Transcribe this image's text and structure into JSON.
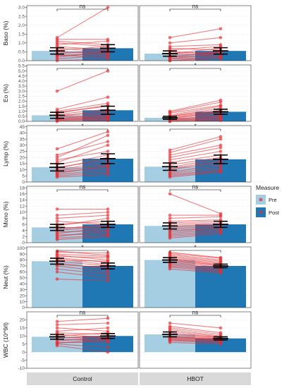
{
  "chart_data": {
    "type": "bar",
    "facet_columns": [
      "Control",
      "HBOT"
    ],
    "legend": {
      "title": "Measure",
      "placement": "right",
      "entries": [
        {
          "label": "Pre",
          "color": "#a6cee3"
        },
        {
          "label": "Post",
          "color": "#1f78b4"
        }
      ]
    },
    "colors": {
      "pre": "#a6cee3",
      "post": "#1f78b4",
      "lines": "#e8292f"
    },
    "panels": [
      {
        "ylabel": "Baso (%)",
        "ylim": [
          0,
          3.1
        ],
        "yticks": [
          0.0,
          0.5,
          1.0,
          1.5,
          2.0,
          2.5,
          3.0
        ],
        "ytick_labels": [
          "0.0",
          "0.5",
          "1.0",
          "1.5",
          "2.0",
          "2.5",
          "3.0"
        ],
        "groups": [
          {
            "facet": "Control",
            "pre_mean": 0.55,
            "post_mean": 0.7,
            "pre_err": 0.18,
            "post_err": 0.2,
            "sig": "ns",
            "pre": [
              1.3,
              1.2,
              1.1,
              1.0,
              0.9,
              0.8,
              0.7,
              0.6,
              0.5,
              0.4,
              0.3,
              0.3,
              0.2,
              0.1,
              0.0
            ],
            "post": [
              3.0,
              1.2,
              0.9,
              0.8,
              1.1,
              0.6,
              0.5,
              0.8,
              0.4,
              0.6,
              0.2,
              0.4,
              0.5,
              0.3,
              0.1
            ]
          },
          {
            "facet": "HBOT",
            "pre_mean": 0.4,
            "post_mean": 0.55,
            "pre_err": 0.15,
            "post_err": 0.18,
            "sig": "ns",
            "pre": [
              1.3,
              1.0,
              0.8,
              0.7,
              0.6,
              0.5,
              0.4,
              0.4,
              0.3,
              0.2,
              0.2,
              0.1,
              0.1,
              0.0,
              0.0
            ],
            "post": [
              1.8,
              1.3,
              0.9,
              0.6,
              0.8,
              0.4,
              0.7,
              0.5,
              0.4,
              0.5,
              0.3,
              0.2,
              0.4,
              0.1,
              0.2
            ]
          }
        ]
      },
      {
        "ylabel": "Eo (%)",
        "ylim": [
          0,
          5.6
        ],
        "yticks": [
          0.0,
          0.5,
          1.0,
          1.5,
          2.0,
          2.5,
          3.0,
          3.5,
          4.0,
          4.5,
          5.0,
          5.5
        ],
        "ytick_labels": [
          "0.0",
          "0.5",
          "1.0",
          "1.5",
          "2.0",
          "2.5",
          "3.0",
          "3.5",
          "4.0",
          "4.5",
          "5.0",
          "5.5"
        ],
        "groups": [
          {
            "facet": "Control",
            "pre_mean": 0.6,
            "post_mean": 1.1,
            "pre_err": 0.3,
            "post_err": 0.4,
            "sig": "*",
            "pre": [
              3.0,
              1.2,
              1.0,
              0.9,
              0.8,
              0.7,
              0.6,
              0.5,
              0.4,
              0.3,
              0.2,
              0.2,
              0.1,
              0.1,
              0.0
            ],
            "post": [
              5.0,
              2.4,
              1.8,
              1.5,
              1.6,
              1.2,
              0.9,
              1.0,
              0.7,
              0.6,
              0.5,
              0.4,
              0.3,
              0.2,
              0.1
            ]
          },
          {
            "facet": "HBOT",
            "pre_mean": 0.35,
            "post_mean": 0.95,
            "pre_err": 0.15,
            "post_err": 0.25,
            "sig": "*",
            "pre": [
              1.0,
              0.9,
              0.8,
              0.6,
              0.5,
              0.5,
              0.4,
              0.3,
              0.3,
              0.2,
              0.2,
              0.1,
              0.1,
              0.0,
              0.0
            ],
            "post": [
              2.1,
              1.9,
              1.6,
              1.5,
              1.3,
              1.1,
              1.0,
              0.9,
              0.8,
              0.6,
              0.5,
              0.4,
              0.3,
              0.2,
              0.1
            ]
          }
        ]
      },
      {
        "ylabel": "Lymp (%)",
        "ylim": [
          0,
          46
        ],
        "yticks": [
          0,
          5,
          10,
          15,
          20,
          25,
          30,
          35,
          40,
          45
        ],
        "ytick_labels": [
          "0",
          "5",
          "10",
          "15",
          "20",
          "25",
          "30",
          "35",
          "40",
          "45"
        ],
        "groups": [
          {
            "facet": "Control",
            "pre_mean": 12,
            "post_mean": 19,
            "pre_err": 3,
            "post_err": 4,
            "sig": "*",
            "pre": [
              27,
              22,
              20,
              18,
              16,
              14,
              12,
              11,
              10,
              9,
              8,
              7,
              6,
              5,
              4
            ],
            "post": [
              41,
              33,
              38,
              25,
              30,
              22,
              18,
              20,
              16,
              14,
              12,
              13,
              10,
              8,
              6
            ]
          },
          {
            "facet": "HBOT",
            "pre_mean": 12.5,
            "post_mean": 18.5,
            "pre_err": 3,
            "post_err": 3.5,
            "sig": "*",
            "pre": [
              26,
              24,
              22,
              20,
              18,
              16,
              14,
              12,
              11,
              10,
              8,
              7,
              6,
              5,
              4
            ],
            "post": [
              37,
              35,
              30,
              28,
              25,
              22,
              20,
              19,
              17,
              16,
              14,
              12,
              10,
              9,
              8
            ]
          }
        ]
      },
      {
        "ylabel": "Mono (%)",
        "ylim": [
          0,
          18.5
        ],
        "yticks": [
          0,
          2,
          4,
          6,
          8,
          10,
          12,
          14,
          16,
          18
        ],
        "ytick_labels": [
          "0",
          "2",
          "4",
          "6",
          "8",
          "10",
          "12",
          "14",
          "16",
          "18"
        ],
        "groups": [
          {
            "facet": "Control",
            "pre_mean": 5,
            "post_mean": 6,
            "pre_err": 1,
            "post_err": 1,
            "sig": "ns",
            "pre": [
              11,
              9,
              8,
              7,
              6,
              5.5,
              5,
              4.5,
              4,
              3.5,
              3,
              2.5,
              2,
              1.5,
              1
            ],
            "post": [
              11,
              10,
              9,
              6,
              7,
              8,
              5,
              6,
              5.5,
              4,
              5,
              3,
              4,
              2.5,
              2
            ]
          },
          {
            "facet": "HBOT",
            "pre_mean": 5.5,
            "post_mean": 6,
            "pre_err": 1,
            "post_err": 1,
            "sig": "ns",
            "pre": [
              16,
              9,
              8,
              7,
              6.5,
              6,
              5.5,
              5,
              4.5,
              4,
              3.5,
              3,
              2.5,
              2,
              1.5
            ],
            "post": [
              9.5,
              9,
              8.5,
              7.5,
              7,
              6.5,
              6,
              6,
              5.5,
              5,
              5,
              4.5,
              4,
              3.5,
              3
            ]
          }
        ]
      },
      {
        "ylabel": "Neut (%)",
        "ylim": [
          0,
          102
        ],
        "yticks": [
          0,
          10,
          20,
          30,
          40,
          50,
          60,
          70,
          80,
          90,
          100
        ],
        "ytick_labels": [
          "0",
          "10",
          "20",
          "30",
          "40",
          "50",
          "60",
          "70",
          "80",
          "90",
          "100"
        ],
        "groups": [
          {
            "facet": "Control",
            "pre_mean": 78,
            "post_mean": 70,
            "pre_err": 5,
            "post_err": 5,
            "sig": "*",
            "pre": [
              95,
              93,
              90,
              88,
              86,
              84,
              82,
              80,
              78,
              75,
              72,
              70,
              65,
              60,
              48
            ],
            "post": [
              88,
              92,
              86,
              80,
              84,
              76,
              72,
              78,
              70,
              65,
              68,
              60,
              56,
              50,
              45
            ]
          },
          {
            "facet": "HBOT",
            "pre_mean": 80,
            "post_mean": 70,
            "pre_err": 4,
            "post_err": 3,
            "sig": "*",
            "pre": [
              93,
              91,
              89,
              87,
              85,
              83,
              82,
              80,
              78,
              76,
              74,
              72,
              70,
              68,
              65
            ],
            "post": [
              84,
              83,
              80,
              78,
              76,
              74,
              72,
              71,
              70,
              68,
              66,
              64,
              62,
              60,
              58
            ]
          }
        ]
      },
      {
        "ylabel": "WBC (10^9/l)",
        "ylim": [
          -10,
          25
        ],
        "yticks": [
          -10,
          -5,
          0,
          5,
          10,
          15,
          20
        ],
        "ytick_labels": [
          "-10",
          "-5",
          "0",
          "5",
          "10",
          "15",
          "20"
        ],
        "groups": [
          {
            "facet": "Control",
            "pre_mean": 9.5,
            "post_mean": 10,
            "pre_err": 1.5,
            "post_err": 1.5,
            "sig": "ns",
            "pre": [
              19,
              17,
              15,
              13,
              12,
              11,
              10,
              9.5,
              9,
              8,
              7,
              6,
              5.5,
              5,
              4
            ],
            "post": [
              21,
              18,
              13,
              15,
              11,
              9,
              12,
              8,
              10,
              7,
              9,
              6,
              8,
              3,
              0
            ]
          },
          {
            "facet": "HBOT",
            "pre_mean": 11,
            "post_mean": 8.5,
            "pre_err": 1.5,
            "post_err": 1,
            "sig": "ns",
            "pre": [
              18,
              16,
              15,
              14,
              13,
              12,
              11,
              10,
              9.5,
              9,
              8.5,
              8,
              7.5,
              7,
              6
            ],
            "post": [
              15,
              12,
              11,
              10,
              9.5,
              9,
              9,
              8.5,
              8,
              8,
              7.5,
              7,
              6.5,
              6,
              5
            ]
          }
        ]
      }
    ]
  }
}
